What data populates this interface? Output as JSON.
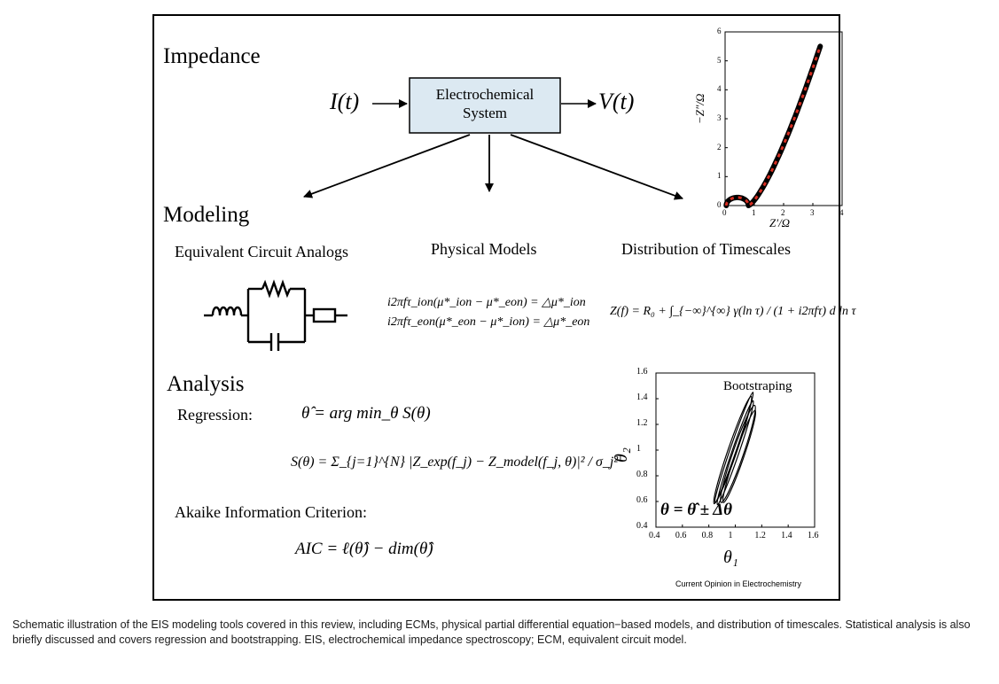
{
  "sections": {
    "impedance": "Impedance",
    "modeling": "Modeling",
    "analysis": "Analysis"
  },
  "system": {
    "input": "I(t)",
    "box_line1": "Electrochemical",
    "box_line2": "System",
    "output": "V(t)"
  },
  "modeling": {
    "col1": "Equivalent Circuit Analogs",
    "col2": "Physical Models",
    "col3": "Distribution of Timescales",
    "pde1": "i2πfτ_ion(μ*_ion − μ*_eon) = △μ*_ion",
    "pde2": "i2πfτ_eon(μ*_eon − μ*_ion) = △μ*_eon",
    "drt": "Z(f) = R₀ + ∫_{−∞}^{∞} γ(ln τ) / (1 + i2πfτ) d ln τ"
  },
  "analysis": {
    "regression_label": "Regression:",
    "argmin": "θ̂ = arg min_θ S(θ)",
    "sum": "S(θ) = Σ_{j=1}^{N} |Z_exp(f_j) − Z_model(f_j, θ)|² / σ_j²",
    "aic_label": "Akaike Information Criterion:",
    "aic": "AIC = ℓ(θ̂) − dim(θ̂)"
  },
  "nyquist": {
    "xlabel": "Z′/Ω",
    "ylabel": "−Z″/Ω",
    "xticks": [
      "0",
      "1",
      "2",
      "3",
      "4"
    ],
    "yticks": [
      "0",
      "1",
      "2",
      "3",
      "4",
      "5",
      "6"
    ],
    "xlim": [
      0,
      4
    ],
    "ylim": [
      0,
      6
    ]
  },
  "bootstrap": {
    "annotation": "Bootstraping",
    "xlabel": "θ₁",
    "ylabel": "θ₂",
    "result": "θ = θ̂ ± Δθ",
    "xticks": [
      "0.4",
      "0.6",
      "0.8",
      "1",
      "1.2",
      "1.4",
      "1.6"
    ],
    "yticks": [
      "0.4",
      "0.6",
      "0.8",
      "1",
      "1.2",
      "1.4",
      "1.6"
    ],
    "xlim": [
      0.4,
      1.6
    ],
    "ylim": [
      0.4,
      1.6
    ]
  },
  "journal": "Current Opinion in Electrochemistry",
  "caption": "Schematic illustration of the EIS modeling tools covered in this review, including ECMs, physical partial differential equation−based models, and distribution of timescales. Statistical analysis is also briefly discussed and covers regression and bootstrapping. EIS, electrochemical impedance spectroscopy; ECM, equivalent circuit model.",
  "colors": {
    "box_fill": "#dce9f2",
    "fit_red": "#d62e22",
    "line": "#000000"
  }
}
